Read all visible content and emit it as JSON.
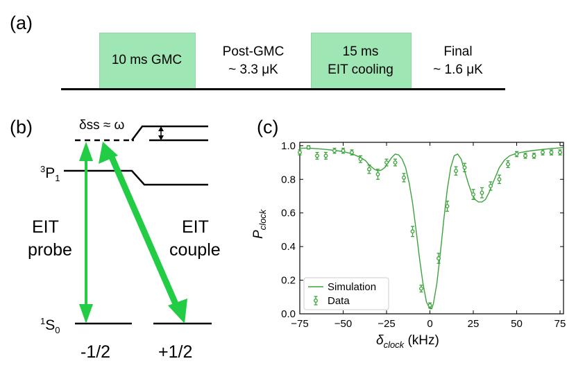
{
  "panels": {
    "a": "(a)",
    "b": "(b)",
    "c": "(c)"
  },
  "sequence": {
    "stages": [
      {
        "line1": "10 ms GMC",
        "line2": "",
        "highlighted": true
      },
      {
        "line1": "Post-GMC",
        "line2": "~ 3.3 μK",
        "highlighted": false
      },
      {
        "line1": "15 ms",
        "line2": "EIT cooling",
        "highlighted": true
      },
      {
        "line1": "Final",
        "line2": "~ 1.6 μK",
        "highlighted": false
      }
    ],
    "highlight_color": "#9ee6b4"
  },
  "level_diagram": {
    "shift_label": "δss ≈ ω",
    "level_3p1": {
      "main": "3",
      "sub": "P",
      "index": "1"
    },
    "level_1s0": {
      "main": "1",
      "sub": "S",
      "index": "0"
    },
    "probe_label": [
      "EIT",
      "probe"
    ],
    "couple_label": [
      "EIT",
      "couple"
    ],
    "mf_labels": [
      "-1/2",
      "+1/2"
    ],
    "arrow_color": "#22cc44"
  },
  "chart_data": {
    "type": "line",
    "xlabel": "δclock (kHz)",
    "xlabel_main": "δ",
    "xlabel_sub": "clock",
    "xlabel_unit": " (kHz)",
    "ylabel_main": "P",
    "ylabel_sub": "clock",
    "xlim": [
      -75,
      77
    ],
    "ylim": [
      0.0,
      1.02
    ],
    "xticks": [
      -75,
      -50,
      -25,
      0,
      25,
      50,
      75
    ],
    "xtick_labels": [
      "−75",
      "−50",
      "−25",
      "0",
      "25",
      "50",
      "75"
    ],
    "yticks": [
      0.0,
      0.2,
      0.4,
      0.6,
      0.8,
      1.0
    ],
    "ytick_labels": [
      "0.0",
      "0.2",
      "0.4",
      "0.6",
      "0.8",
      "1.0"
    ],
    "color": "#3aa33a",
    "legend": {
      "placement": "lower-left",
      "entries": [
        "Simulation",
        "Data"
      ]
    },
    "series": [
      {
        "name": "Simulation",
        "kind": "line",
        "x": [
          -75,
          -70,
          -65,
          -60,
          -55,
          -50,
          -45,
          -40,
          -37,
          -35,
          -32,
          -30,
          -28,
          -26,
          -24,
          -22,
          -20,
          -18,
          -16,
          -14,
          -12,
          -10,
          -8,
          -6,
          -4,
          -2,
          0,
          1,
          2,
          4,
          6,
          8,
          10,
          12,
          14,
          16,
          18,
          20,
          22,
          24,
          26,
          28,
          30,
          32,
          34,
          36,
          38,
          40,
          43,
          46,
          50,
          55,
          60,
          65,
          70,
          75,
          77
        ],
        "y": [
          0.985,
          0.985,
          0.982,
          0.978,
          0.972,
          0.965,
          0.952,
          0.93,
          0.91,
          0.885,
          0.86,
          0.85,
          0.855,
          0.87,
          0.9,
          0.93,
          0.95,
          0.945,
          0.92,
          0.87,
          0.78,
          0.66,
          0.5,
          0.33,
          0.18,
          0.07,
          0.03,
          0.03,
          0.06,
          0.18,
          0.36,
          0.56,
          0.74,
          0.87,
          0.94,
          0.95,
          0.92,
          0.85,
          0.78,
          0.72,
          0.68,
          0.665,
          0.665,
          0.68,
          0.72,
          0.77,
          0.82,
          0.87,
          0.915,
          0.94,
          0.955,
          0.965,
          0.972,
          0.978,
          0.983,
          0.987,
          0.99
        ]
      },
      {
        "name": "Data",
        "kind": "scatter_errorbar",
        "x": [
          -75,
          -70,
          -65,
          -60,
          -55,
          -50,
          -45,
          -40,
          -35,
          -30,
          -25,
          -20,
          -15,
          -10,
          -5,
          0,
          5,
          10,
          15,
          20,
          25,
          30,
          35,
          40,
          45,
          50,
          55,
          60,
          65,
          70,
          75
        ],
        "y": [
          0.96,
          0.99,
          0.94,
          0.94,
          0.97,
          0.97,
          0.96,
          0.92,
          0.86,
          0.83,
          0.9,
          0.9,
          0.81,
          0.49,
          0.15,
          0.05,
          0.33,
          0.64,
          0.85,
          0.87,
          0.71,
          0.72,
          0.76,
          0.8,
          0.89,
          0.95,
          0.94,
          0.94,
          0.96,
          0.96,
          0.96
        ],
        "err": [
          0.015,
          0.01,
          0.02,
          0.02,
          0.015,
          0.015,
          0.015,
          0.02,
          0.025,
          0.03,
          0.02,
          0.02,
          0.025,
          0.03,
          0.02,
          0.015,
          0.03,
          0.03,
          0.025,
          0.025,
          0.03,
          0.03,
          0.025,
          0.025,
          0.02,
          0.015,
          0.015,
          0.015,
          0.015,
          0.015,
          0.015
        ]
      }
    ]
  }
}
